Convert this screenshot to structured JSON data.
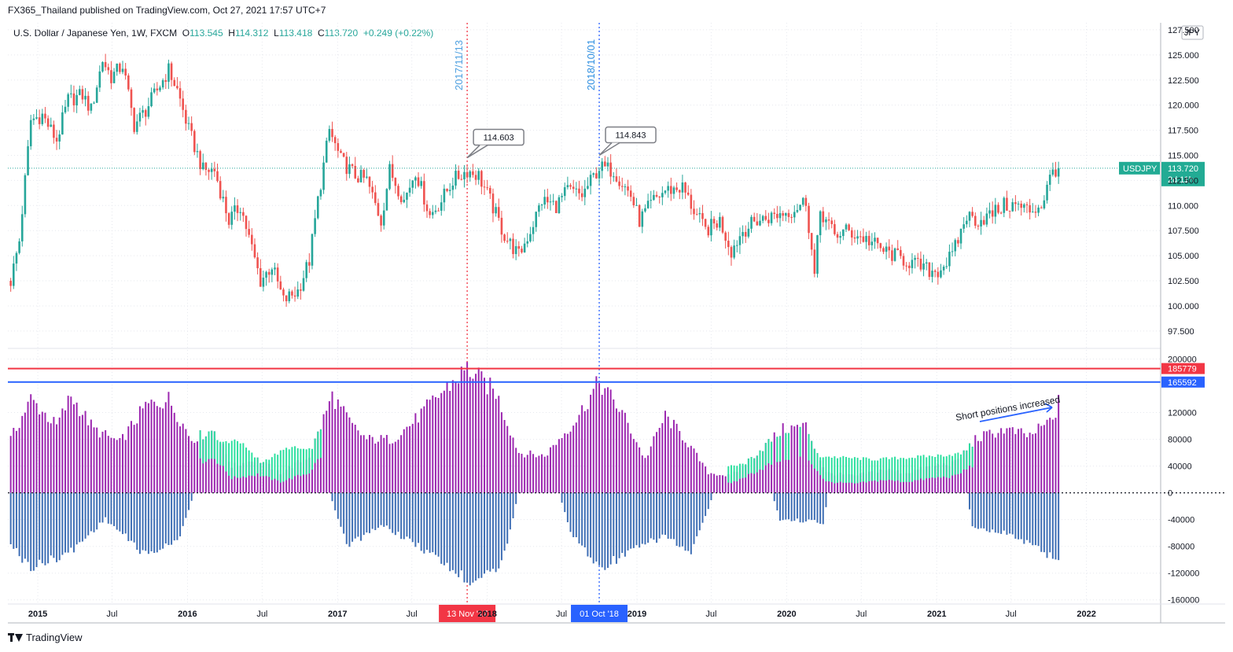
{
  "header": {
    "published_by": "FX365_Thailand published on TradingView.com, Oct 27, 2021 17:57 UTC+7"
  },
  "legend": {
    "symbol": "U.S. Dollar / Japanese Yen, 1W, FXCM",
    "open_label": "O",
    "open": "113.545",
    "high_label": "H",
    "high": "114.312",
    "low_label": "L",
    "low": "113.418",
    "close_label": "C",
    "close": "113.720",
    "change": "+0.249 (+0.22%)"
  },
  "currency_button": "JPY",
  "price_tag": {
    "symbol": "USDJPY",
    "price": "113.720",
    "countdown": "2d 11h"
  },
  "vertical_markers": [
    {
      "label": "2017/11/13",
      "date_tag": "13 Nov '17",
      "color": "#f23645"
    },
    {
      "label": "2018/10/01",
      "date_tag": "01 Oct '18",
      "color": "#2962ff"
    }
  ],
  "callouts": [
    "114.603",
    "114.843"
  ],
  "annotation": "Short positions increased",
  "footer": {
    "brand": "TradingView"
  },
  "colors": {
    "up": "#26a69a",
    "down": "#ef5350",
    "net_long": "#9c27b0",
    "short": "#3f6fb5",
    "long_green": "#2de0a0",
    "line_red": "#f23645",
    "line_blue": "#2962ff"
  },
  "chart_data": [
    {
      "type": "candlestick",
      "title": "U.S. Dollar / Japanese Yen, 1W, FXCM",
      "y_ticks": [
        "127.500",
        "125.000",
        "122.500",
        "120.000",
        "117.500",
        "115.000",
        "112.500",
        "110.000",
        "107.500",
        "105.000",
        "102.500",
        "100.000",
        "97.500"
      ],
      "ylim": [
        96.0,
        128.2
      ],
      "x_ticks": [
        "2015",
        "Jul",
        "2016",
        "Jul",
        "2017",
        "Jul",
        "2018",
        "Jul",
        "2019",
        "Jul",
        "2020",
        "Jul",
        "2021",
        "Jul",
        "2022"
      ],
      "x_range": [
        "2014-10-20",
        "2022-07-01"
      ],
      "last_price": 113.72,
      "grid": true,
      "close_path": [
        [
          "2014-10-27",
          102.5
        ],
        [
          "2014-11-17",
          106.5
        ],
        [
          "2014-12-15",
          118.5
        ],
        [
          "2015-01-12",
          119.0
        ],
        [
          "2015-02-16",
          116.5
        ],
        [
          "2015-03-16",
          120.5
        ],
        [
          "2015-04-20",
          121.0
        ],
        [
          "2015-05-11",
          119.5
        ],
        [
          "2015-06-08",
          124.5
        ],
        [
          "2015-06-29",
          122.8
        ],
        [
          "2015-07-27",
          124.0
        ],
        [
          "2015-08-24",
          118.0
        ],
        [
          "2015-09-21",
          119.5
        ],
        [
          "2015-10-19",
          121.5
        ],
        [
          "2015-11-16",
          123.5
        ],
        [
          "2015-12-07",
          121.5
        ],
        [
          "2016-01-04",
          117.5
        ],
        [
          "2016-02-08",
          113.5
        ],
        [
          "2016-03-07",
          113.5
        ],
        [
          "2016-04-11",
          108.5
        ],
        [
          "2016-05-09",
          110.0
        ],
        [
          "2016-06-27",
          102.5
        ],
        [
          "2016-07-25",
          104.0
        ],
        [
          "2016-08-22",
          100.5
        ],
        [
          "2016-09-26",
          101.5
        ],
        [
          "2016-10-24",
          104.5
        ],
        [
          "2016-11-14",
          110.5
        ],
        [
          "2016-12-12",
          117.5
        ],
        [
          "2017-01-09",
          114.5
        ],
        [
          "2017-02-13",
          113.0
        ],
        [
          "2017-03-13",
          112.5
        ],
        [
          "2017-04-17",
          108.5
        ],
        [
          "2017-05-08",
          113.5
        ],
        [
          "2017-06-12",
          110.5
        ],
        [
          "2017-07-10",
          113.5
        ],
        [
          "2017-08-14",
          109.0
        ],
        [
          "2017-09-11",
          110.5
        ],
        [
          "2017-10-09",
          112.5
        ],
        [
          "2017-11-13",
          113.5
        ],
        [
          "2017-12-11",
          113.0
        ],
        [
          "2018-01-08",
          110.5
        ],
        [
          "2018-02-12",
          107.0
        ],
        [
          "2018-03-19",
          105.0
        ],
        [
          "2018-04-16",
          107.5
        ],
        [
          "2018-05-14",
          110.5
        ],
        [
          "2018-06-18",
          110.0
        ],
        [
          "2018-07-16",
          111.5
        ],
        [
          "2018-08-20",
          111.0
        ],
        [
          "2018-10-01",
          113.8
        ],
        [
          "2018-11-05",
          113.5
        ],
        [
          "2018-12-17",
          111.0
        ],
        [
          "2019-01-07",
          108.5
        ],
        [
          "2019-02-11",
          110.5
        ],
        [
          "2019-03-11",
          111.5
        ],
        [
          "2019-04-22",
          111.8
        ],
        [
          "2019-05-20",
          109.5
        ],
        [
          "2019-06-17",
          107.5
        ],
        [
          "2019-07-22",
          108.5
        ],
        [
          "2019-08-19",
          105.5
        ],
        [
          "2019-09-16",
          107.5
        ],
        [
          "2019-10-21",
          108.5
        ],
        [
          "2019-11-18",
          108.8
        ],
        [
          "2019-12-16",
          109.2
        ],
        [
          "2020-01-13",
          109.5
        ],
        [
          "2020-02-17",
          110.5
        ],
        [
          "2020-03-09",
          103.0
        ],
        [
          "2020-03-23",
          109.5
        ],
        [
          "2020-04-27",
          107.0
        ],
        [
          "2020-05-25",
          107.5
        ],
        [
          "2020-06-22",
          107.0
        ],
        [
          "2020-07-20",
          106.5
        ],
        [
          "2020-08-24",
          105.5
        ],
        [
          "2020-09-21",
          105.0
        ],
        [
          "2020-10-19",
          104.5
        ],
        [
          "2020-11-16",
          104.0
        ],
        [
          "2020-12-14",
          103.5
        ],
        [
          "2021-01-04",
          103.5
        ],
        [
          "2021-02-08",
          105.0
        ],
        [
          "2021-03-15",
          109.0
        ],
        [
          "2021-04-12",
          108.5
        ],
        [
          "2021-05-10",
          109.0
        ],
        [
          "2021-06-14",
          110.0
        ],
        [
          "2021-07-12",
          110.0
        ],
        [
          "2021-08-16",
          109.5
        ],
        [
          "2021-09-13",
          110.0
        ],
        [
          "2021-10-11",
          113.5
        ],
        [
          "2021-10-25",
          113.72
        ]
      ],
      "annotated_highs": [
        {
          "date": "2017-11-13",
          "value": 114.603
        },
        {
          "date": "2018-10-01",
          "value": 114.843
        }
      ]
    },
    {
      "type": "bar",
      "title": "",
      "y_ticks": [
        "200000",
        "120000",
        "80000",
        "40000",
        "0",
        "-40000",
        "-80000",
        "-120000",
        "-160000"
      ],
      "ylim": [
        -165000,
        210000
      ],
      "hlines": [
        {
          "value": 185779,
          "label": "185779",
          "color": "#f23645"
        },
        {
          "value": 165592,
          "label": "165592",
          "color": "#2962ff"
        }
      ],
      "series": [],
      "net_position_path": [
        [
          "2014-10-27",
          80000
        ],
        [
          "2014-12-15",
          140000
        ],
        [
          "2015-02-16",
          100000
        ],
        [
          "2015-03-23",
          145000
        ],
        [
          "2015-05-18",
          95000
        ],
        [
          "2015-07-20",
          75000
        ],
        [
          "2015-09-21",
          130000
        ],
        [
          "2015-11-16",
          140000
        ],
        [
          "2016-01-11",
          80000
        ],
        [
          "2016-03-07",
          95000
        ],
        [
          "2016-04-18",
          40000
        ],
        [
          "2016-06-20",
          50000
        ],
        [
          "2016-08-15",
          30000
        ],
        [
          "2016-10-24",
          55000
        ],
        [
          "2016-12-19",
          145000
        ],
        [
          "2017-02-06",
          100000
        ],
        [
          "2017-03-13",
          80000
        ],
        [
          "2017-05-15",
          80000
        ],
        [
          "2017-07-03",
          105000
        ],
        [
          "2017-09-04",
          145000
        ],
        [
          "2017-11-13",
          185779
        ],
        [
          "2018-01-22",
          150000
        ],
        [
          "2018-03-19",
          60000
        ],
        [
          "2018-05-21",
          55000
        ],
        [
          "2018-08-06",
          110000
        ],
        [
          "2018-10-01",
          165592
        ],
        [
          "2018-11-26",
          120000
        ],
        [
          "2019-01-21",
          50000
        ],
        [
          "2019-03-11",
          115000
        ],
        [
          "2019-04-29",
          80000
        ],
        [
          "2019-06-24",
          30000
        ],
        [
          "2019-08-19",
          25000
        ],
        [
          "2019-10-21",
          60000
        ],
        [
          "2019-12-23",
          95000
        ],
        [
          "2020-02-17",
          100000
        ],
        [
          "2020-04-06",
          30000
        ],
        [
          "2020-06-15",
          25000
        ],
        [
          "2020-08-24",
          35000
        ],
        [
          "2020-10-19",
          30000
        ],
        [
          "2020-12-21",
          40000
        ],
        [
          "2021-02-15",
          45000
        ],
        [
          "2021-04-05",
          80000
        ],
        [
          "2021-06-14",
          95000
        ],
        [
          "2021-08-16",
          85000
        ],
        [
          "2021-10-11",
          110000
        ],
        [
          "2021-10-25",
          135000
        ]
      ],
      "short_position_path": [
        [
          "2014-10-27",
          -80000
        ],
        [
          "2014-12-15",
          -115000
        ],
        [
          "2015-03-23",
          -90000
        ],
        [
          "2015-06-15",
          -40000
        ],
        [
          "2015-09-21",
          -95000
        ],
        [
          "2015-12-07",
          -75000
        ],
        [
          "2016-01-18",
          0
        ],
        [
          "2016-12-12",
          0
        ],
        [
          "2017-01-23",
          -80000
        ],
        [
          "2017-04-24",
          -50000
        ],
        [
          "2017-08-21",
          -95000
        ],
        [
          "2017-11-13",
          -135000
        ],
        [
          "2018-02-05",
          -110000
        ],
        [
          "2018-03-19",
          0
        ],
        [
          "2018-06-25",
          0
        ],
        [
          "2018-07-23",
          -60000
        ],
        [
          "2018-10-01",
          -115000
        ],
        [
          "2018-12-17",
          -90000
        ],
        [
          "2019-03-11",
          -65000
        ],
        [
          "2019-05-13",
          -95000
        ],
        [
          "2019-07-08",
          0
        ],
        [
          "2019-11-25",
          0
        ],
        [
          "2019-12-16",
          -40000
        ],
        [
          "2020-03-30",
          -45000
        ],
        [
          "2020-04-13",
          0
        ],
        [
          "2021-03-15",
          0
        ],
        [
          "2021-03-29",
          -50000
        ],
        [
          "2021-07-05",
          -65000
        ],
        [
          "2021-10-18",
          -100000
        ]
      ],
      "long_green_path": [
        [
          "2016-02-01",
          68000
        ],
        [
          "2016-05-02",
          80000
        ],
        [
          "2016-06-27",
          45000
        ],
        [
          "2016-09-05",
          68000
        ],
        [
          "2016-12-05",
          60000
        ],
        [
          "2019-08-12",
          40000
        ],
        [
          "2019-10-07",
          45000
        ],
        [
          "2020-03-16",
          55000
        ],
        [
          "2020-08-03",
          50000
        ],
        [
          "2020-12-21",
          55000
        ],
        [
          "2021-03-29",
          60000
        ]
      ]
    }
  ]
}
